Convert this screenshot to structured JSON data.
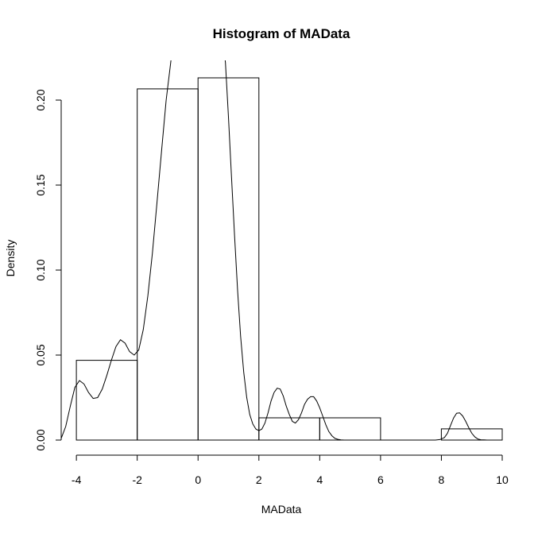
{
  "chart_data": {
    "type": "bar",
    "title": "Histogram of MAData",
    "xlabel": "MAData",
    "ylabel": "Density",
    "xlim": [
      -4.5,
      10
    ],
    "ylim": [
      0,
      0.222
    ],
    "x_ticks": [
      -4,
      -2,
      0,
      2,
      4,
      6,
      8,
      10
    ],
    "x_tick_labels": [
      "-4",
      "-2",
      "0",
      "2",
      "4",
      "6",
      "8",
      "10"
    ],
    "y_ticks": [
      0,
      0.05,
      0.1,
      0.15,
      0.2
    ],
    "y_tick_labels": [
      "0.00",
      "0.05",
      "0.10",
      "0.15",
      "0.20"
    ],
    "bins": [
      {
        "from": -4,
        "to": -2,
        "density": 0.0469
      },
      {
        "from": -2,
        "to": 0,
        "density": 0.2066
      },
      {
        "from": 0,
        "to": 2,
        "density": 0.2131
      },
      {
        "from": 2,
        "to": 4,
        "density": 0.0131
      },
      {
        "from": 4,
        "to": 6,
        "density": 0.0131
      },
      {
        "from": 6,
        "to": 8,
        "density": 0
      },
      {
        "from": 8,
        "to": 10,
        "density": 0.0066
      }
    ],
    "density_curve": {
      "x": [
        -4.5,
        -4.35,
        -4.2,
        -4.05,
        -3.9,
        -3.75,
        -3.6,
        -3.45,
        -3.3,
        -3.15,
        -3.0,
        -2.85,
        -2.7,
        -2.55,
        -2.4,
        -2.25,
        -2.1,
        -1.95,
        -1.8,
        -1.65,
        -1.5,
        -1.35,
        -1.2,
        -1.05,
        -0.9,
        -0.85,
        0.85,
        0.9,
        1.0,
        1.1,
        1.2,
        1.3,
        1.4,
        1.5,
        1.6,
        1.7,
        1.8,
        1.9,
        2.0,
        2.1,
        2.2,
        2.3,
        2.4,
        2.5,
        2.6,
        2.7,
        2.8,
        2.9,
        3.0,
        3.1,
        3.2,
        3.3,
        3.4,
        3.5,
        3.6,
        3.7,
        3.8,
        3.9,
        4.0,
        4.1,
        4.2,
        4.3,
        4.4,
        4.5,
        4.6,
        4.7,
        4.8,
        4.9,
        5.0,
        5.1,
        5.2,
        5.3,
        5.4,
        5.5,
        5.6,
        5.7,
        5.8,
        5.9,
        6.0,
        6.2,
        6.5,
        7.0,
        7.5,
        7.8,
        7.95,
        8.1,
        8.2,
        8.3,
        8.4,
        8.5,
        8.6,
        8.7,
        8.8,
        8.9,
        9.0,
        9.1,
        9.2,
        9.3,
        9.4,
        9.5,
        9.6
      ],
      "y": [
        0.001,
        0.008,
        0.02,
        0.031,
        0.035,
        0.033,
        0.028,
        0.0245,
        0.025,
        0.03,
        0.038,
        0.047,
        0.055,
        0.059,
        0.057,
        0.052,
        0.05,
        0.053,
        0.065,
        0.085,
        0.11,
        0.14,
        0.17,
        0.2,
        0.222,
        0.23,
        0.23,
        0.222,
        0.19,
        0.155,
        0.12,
        0.088,
        0.061,
        0.04,
        0.025,
        0.015,
        0.0095,
        0.0065,
        0.0055,
        0.0065,
        0.01,
        0.016,
        0.023,
        0.028,
        0.0305,
        0.03,
        0.026,
        0.02,
        0.015,
        0.011,
        0.01,
        0.012,
        0.016,
        0.021,
        0.024,
        0.0255,
        0.0255,
        0.023,
        0.019,
        0.014,
        0.009,
        0.005,
        0.0025,
        0.001,
        0.0004,
        0.0001,
        0.0,
        0.0,
        0.0,
        0.0,
        0.0,
        0.0,
        0.0,
        0.0,
        0.0,
        0.0,
        0.0,
        0.0,
        0.0,
        0.0,
        0.0,
        0.0,
        0.0,
        0.0,
        0.0003,
        0.0015,
        0.004,
        0.0085,
        0.013,
        0.0158,
        0.016,
        0.0142,
        0.011,
        0.0073,
        0.004,
        0.0018,
        0.0006,
        0.0002,
        0.0001,
        0.0,
        0.0
      ]
    }
  }
}
